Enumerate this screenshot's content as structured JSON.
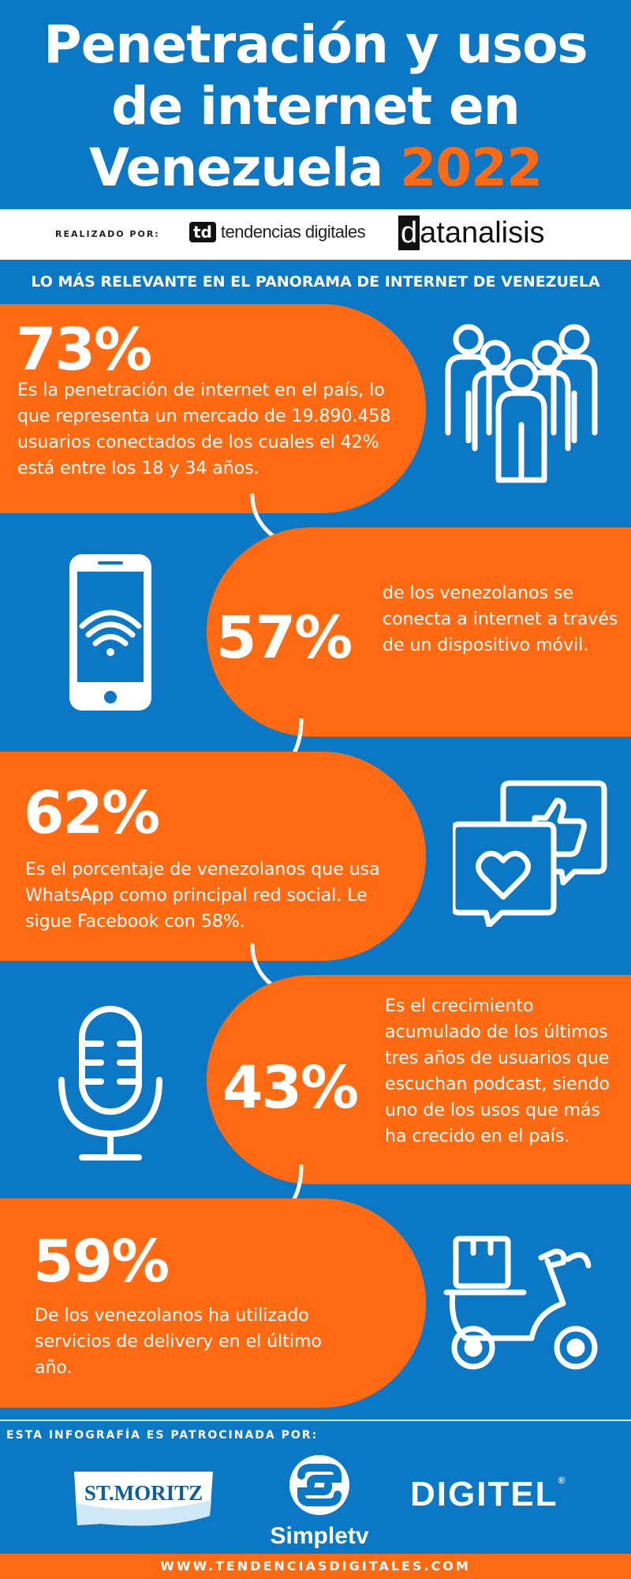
{
  "header": {
    "title_line1": "Penetración y usos",
    "title_line2": "de internet en",
    "title_line3": "Venezuela",
    "title_year": "2022",
    "credits_label": "REALIZADO POR:",
    "td_mark": "td",
    "td_name": "tendencias digitales",
    "da_mark": "d",
    "da_name": "atanalisis"
  },
  "subtitle": "LO MÁS RELEVANTE EN EL PANORAMA DE INTERNET DE VENEZUELA",
  "stats": [
    {
      "value": "73%",
      "text": "Es la penetración de internet en el país, lo que representa un mercado de 19.890.458 usuarios conectados de los cuales el 42% está entre los 18 y 34 años.",
      "icon": "people-group-icon"
    },
    {
      "value": "57%",
      "text": "de los venezolanos se conecta a internet a través de un dispositivo móvil.",
      "icon": "smartphone-wifi-icon"
    },
    {
      "value": "62%",
      "text": "Es el porcentaje de venezolanos que usa WhatsApp como principal red social. Le sigue Facebook con 58%.",
      "icon": "social-chat-like-icon"
    },
    {
      "value": "43%",
      "text": "Es el crecimiento acumulado de los últimos tres años de usuarios que escuchan podcast, siendo uno de los usos que más ha crecido en el país.",
      "icon": "microphone-icon"
    },
    {
      "value": "59%",
      "text": "De los venezolanos ha utilizado servicios de delivery en el último año.",
      "icon": "delivery-scooter-icon"
    }
  ],
  "sponsors": {
    "label": "ESTA INFOGRAFÍA ES PATROCINADA POR:",
    "stmoritz": "ST.MORITZ",
    "simpletv": "Simpletv",
    "digitel": "DIGITEL"
  },
  "footer": "WWW.TENDENCIASDIGITALES.COM",
  "colors": {
    "background": "#0b78c5",
    "accent": "#ff6a13",
    "text": "#ffffff"
  }
}
